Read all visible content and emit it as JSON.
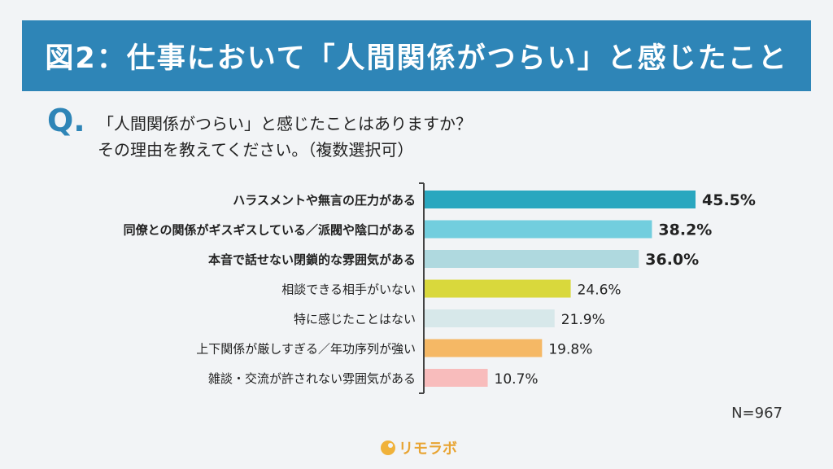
{
  "header": {
    "title": "図2：仕事において「人間関係がつらい」と感じたこと"
  },
  "question": {
    "mark": "Q.",
    "line1": "「人間関係がつらい」と感じたことはありますか？",
    "line2": "その理由を教えてください。（複数選択可）"
  },
  "chart_data": {
    "type": "bar",
    "orientation": "horizontal",
    "title": "図2：仕事において「人間関係がつらい」と感じたこと",
    "categories": [
      "ハラスメントや無言の圧力がある",
      "同僚との関係がギスギスしている／派閥や陰口がある",
      "本音で話せない閉鎖的な雰囲気がある",
      "相談できる相手がいない",
      "特に感じたことはない",
      "上下関係が厳しすぎる／年功序列が強い",
      "雑談・交流が許されない雰囲気がある"
    ],
    "values": [
      45.5,
      38.2,
      36.0,
      24.6,
      21.9,
      19.8,
      10.7
    ],
    "value_labels": [
      "45.5%",
      "38.2%",
      "36.0%",
      "24.6%",
      "21.9%",
      "19.8%",
      "10.7%"
    ],
    "colors": [
      "#2aa7bf",
      "#72cede",
      "#afd9df",
      "#d9d83c",
      "#d7e8ea",
      "#f5b865",
      "#f8bcbc"
    ],
    "emphasized": [
      true,
      true,
      true,
      false,
      false,
      false,
      false
    ],
    "xlim": [
      0,
      50
    ],
    "unit": "%",
    "sample_size": "N=967"
  },
  "footer": {
    "brand": "リモラボ",
    "brand_icon": "remolabo-logo-icon"
  }
}
